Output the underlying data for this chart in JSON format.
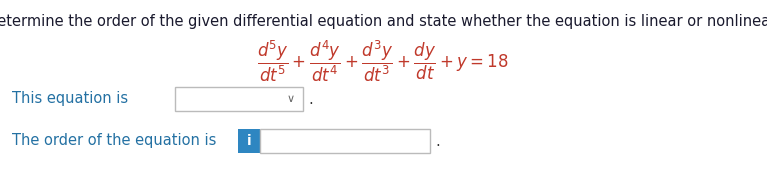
{
  "title": "Determine the order of the given differential equation and state whether the equation is linear or nonlinear.",
  "title_color": "#1a1a2e",
  "title_fontsize": 10.5,
  "equation": "$\\dfrac{d^5y}{dt^5} + \\dfrac{d^4y}{dt^4} + \\dfrac{d^3y}{dt^3} + \\dfrac{dy}{dt} + y = 18$",
  "eq_color": "#C0392B",
  "eq_fontsize": 12,
  "line1_text": "This equation is",
  "line2_text": "The order of the equation is",
  "text_color": "#2471A3",
  "text_fontsize": 10.5,
  "dot_color": "#333333",
  "dropdown_chevron": "∨",
  "blue_box_color": "#2E86C1",
  "blue_box_letter": "i",
  "box_edge_color": "#BBBBBB",
  "background_color": "#FFFFFF"
}
